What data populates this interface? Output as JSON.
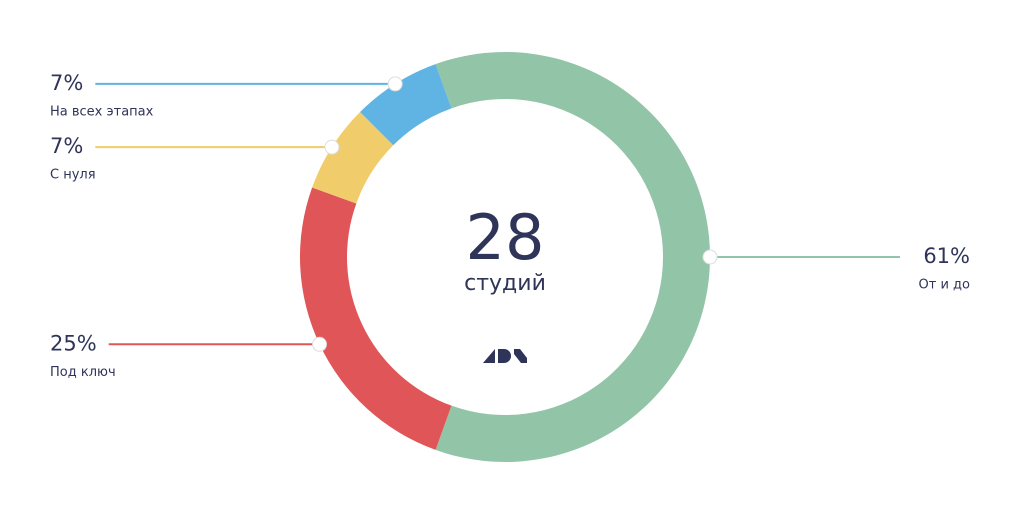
{
  "chart_data": {
    "type": "donut",
    "total": 28,
    "total_label": "студий",
    "categories": [
      "От и до",
      "Под ключ",
      "С нуля",
      "На всех этапах"
    ],
    "values": [
      61,
      25,
      7,
      7
    ],
    "value_labels": [
      "61%",
      "25%",
      "7%",
      "7%"
    ],
    "colors": [
      "#92c4a8",
      "#e05557",
      "#f0cd6a",
      "#5fb4e4"
    ]
  }
}
